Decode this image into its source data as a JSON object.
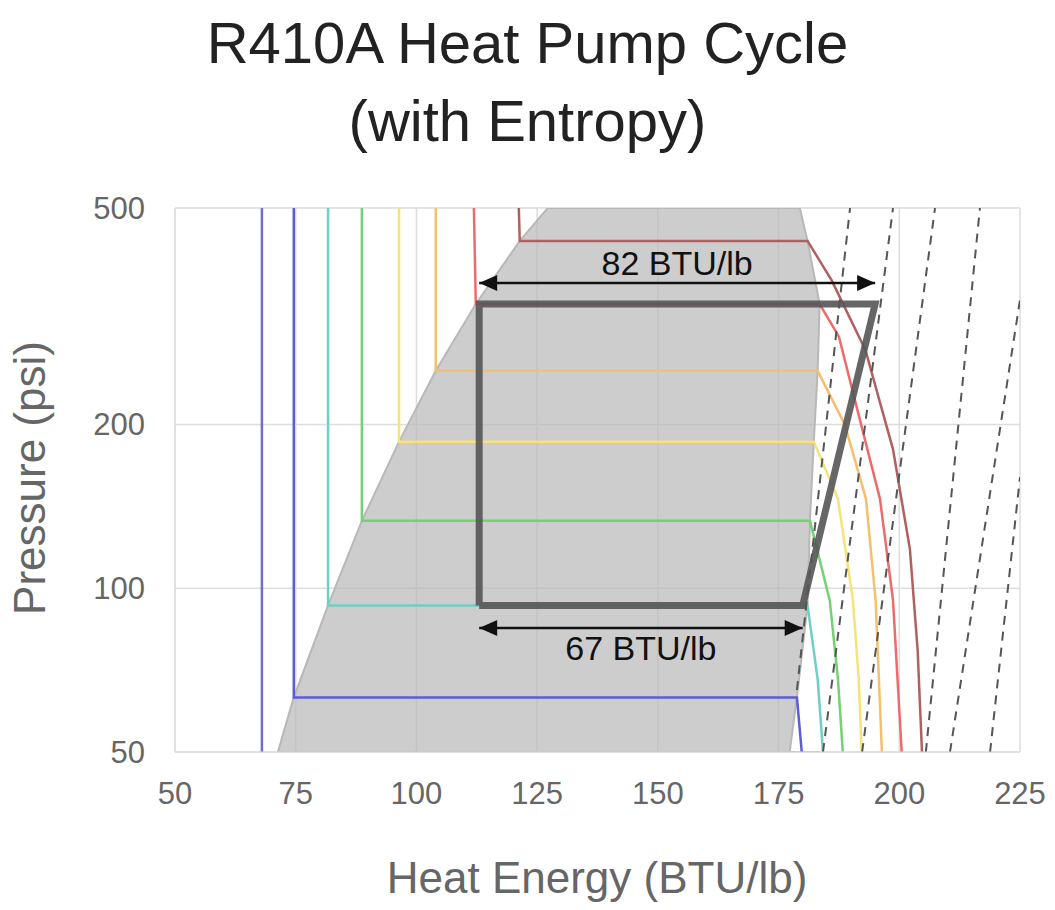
{
  "chart_data": {
    "type": "line",
    "title": "R410A Heat Pump Cycle\n(with Entropy)",
    "x_label": "Heat Energy (BTU/lb)",
    "y_label": "Pressure (psi)",
    "xlim": [
      50,
      225
    ],
    "xticks": [
      50,
      75,
      100,
      125,
      150,
      175,
      200,
      225
    ],
    "ylim": [
      50,
      500
    ],
    "yticks": [
      50,
      100,
      200,
      500
    ],
    "log": "y",
    "grid": true,
    "dome": {
      "color": "#b8b8b8",
      "x": [
        71.3,
        74.6,
        81.7,
        88.7,
        96.4,
        104,
        112.3,
        121.4,
        127.2,
        179.4,
        181,
        183.5,
        183.1,
        182.3,
        181.5,
        181,
        178.8,
        177.3
      ],
      "values": [
        50,
        63,
        93,
        133,
        186,
        251,
        333,
        435,
        500,
        500,
        435,
        333,
        251,
        186,
        133,
        93,
        63,
        50
      ]
    },
    "isotherms": [
      {
        "color": "#6e6ed6",
        "x": [
          68,
          68
        ],
        "values": [
          50,
          500
        ]
      },
      {
        "color": "#5b5bdc",
        "x": [
          74.6,
          74.6,
          178.8,
          179.8
        ],
        "values": [
          500,
          63,
          63,
          50
        ]
      },
      {
        "color": "#6fcfc4",
        "x": [
          81.7,
          81.7,
          181,
          183.1,
          184.2
        ],
        "values": [
          500,
          93,
          93,
          68,
          50
        ]
      },
      {
        "color": "#74d174",
        "x": [
          88.7,
          88.7,
          181.5,
          185.6,
          187.3,
          188.3
        ],
        "values": [
          500,
          133,
          133,
          95,
          68,
          50
        ]
      },
      {
        "color": "#f7e27a",
        "x": [
          96.4,
          96.4,
          182.3,
          187.3,
          190.4,
          191.6,
          192.2
        ],
        "values": [
          500,
          186,
          186,
          146,
          95,
          68,
          50
        ]
      },
      {
        "color": "#f5bf6e",
        "x": [
          104,
          104,
          183.1,
          188.7,
          193.1,
          195.1,
          196.4
        ],
        "values": [
          500,
          251,
          251,
          200,
          146,
          95,
          50
        ]
      },
      {
        "color": "#ee6b6b",
        "x": [
          111.9,
          112.3,
          183.5,
          187.5,
          190.8,
          196,
          198.7,
          200.5
        ],
        "values": [
          500,
          333,
          333,
          290,
          222,
          146,
          95,
          50
        ]
      },
      {
        "color": "#b06060",
        "x": [
          121.2,
          121.4,
          181,
          186,
          193,
          198.7,
          202.2,
          203.8,
          204.7
        ],
        "values": [
          500,
          435,
          435,
          368,
          274,
          180,
          118,
          77,
          50
        ]
      }
    ],
    "isentropes": [
      {
        "color": "#555555",
        "line_style": "dashed",
        "x": [
          178.8,
          189.8
        ],
        "values": [
          65,
          500
        ]
      },
      {
        "color": "#555555",
        "line_style": "dashed",
        "x": [
          184.2,
          198.7
        ],
        "values": [
          50,
          500
        ]
      },
      {
        "color": "#555555",
        "line_style": "dashed",
        "x": [
          192.3,
          207.4
        ],
        "values": [
          50,
          500
        ]
      },
      {
        "color": "#555555",
        "line_style": "dashed",
        "x": [
          205.5,
          216.7
        ],
        "values": [
          50,
          500
        ]
      },
      {
        "color": "#555555",
        "line_style": "dashed",
        "x": [
          210.5,
          225
        ],
        "values": [
          50,
          339
        ]
      },
      {
        "color": "#555555",
        "line_style": "dashed",
        "x": [
          218.8,
          225
        ],
        "values": [
          50,
          160
        ]
      }
    ],
    "cycle": {
      "color": "#555555",
      "x": [
        113,
        180,
        195,
        113,
        113
      ],
      "values": [
        93,
        93,
        333,
        333,
        93
      ]
    },
    "annotations": [
      {
        "text": "82 BTU/lb",
        "x": [
          113,
          195
        ],
        "y": 364
      },
      {
        "text": "67 BTU/lb",
        "x": [
          113,
          180
        ],
        "y": 84.5
      }
    ]
  }
}
